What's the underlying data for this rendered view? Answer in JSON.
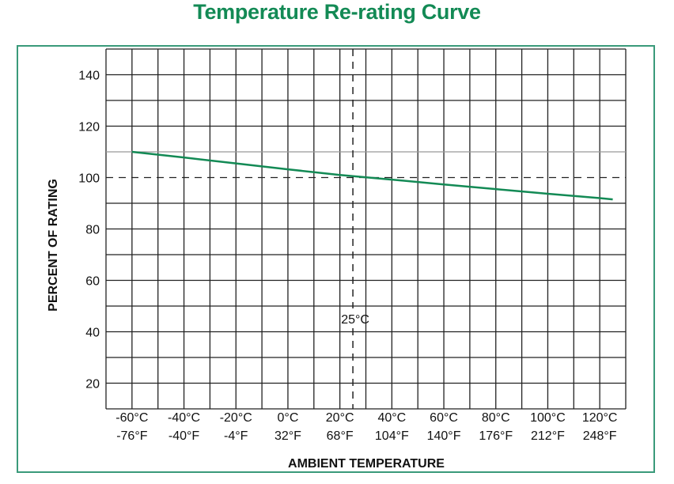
{
  "chart_data": {
    "type": "line",
    "title": "Temperature Re-rating Curve",
    "xlabel": "AMBIENT TEMPERATURE",
    "ylabel": "PERCENT OF RATING",
    "xlim": [
      -70,
      130
    ],
    "ylim": [
      10,
      150
    ],
    "grid": true,
    "x_ticks": [
      {
        "c": -60,
        "label_c": "-60°C",
        "label_f": "-76°F"
      },
      {
        "c": -40,
        "label_c": "-40°C",
        "label_f": "-40°F"
      },
      {
        "c": -20,
        "label_c": "-20°C",
        "label_f": "-4°F"
      },
      {
        "c": 0,
        "label_c": "0°C",
        "label_f": "32°F"
      },
      {
        "c": 20,
        "label_c": "20°C",
        "label_f": "68°F"
      },
      {
        "c": 40,
        "label_c": "40°C",
        "label_f": "104°F"
      },
      {
        "c": 60,
        "label_c": "60°C",
        "label_f": "140°F"
      },
      {
        "c": 80,
        "label_c": "80°C",
        "label_f": "176°F"
      },
      {
        "c": 100,
        "label_c": "100°C",
        "label_f": "212°F"
      },
      {
        "c": 120,
        "label_c": "120°C",
        "label_f": "248°F"
      }
    ],
    "y_ticks": [
      20,
      40,
      60,
      80,
      100,
      120,
      140
    ],
    "reference_lines": {
      "vertical": {
        "x": 25,
        "label": "25°C",
        "style": "dashed"
      },
      "horizontal": {
        "y": 100,
        "style": "dashed"
      }
    },
    "series": [
      {
        "color": "#138a55",
        "x": [
          -60,
          -40,
          -20,
          0,
          20,
          40,
          60,
          80,
          100,
          120,
          125
        ],
        "y": [
          110,
          107.8,
          105.5,
          103.2,
          101,
          99.2,
          97.3,
          95.5,
          93.7,
          92,
          91.5
        ]
      }
    ]
  }
}
